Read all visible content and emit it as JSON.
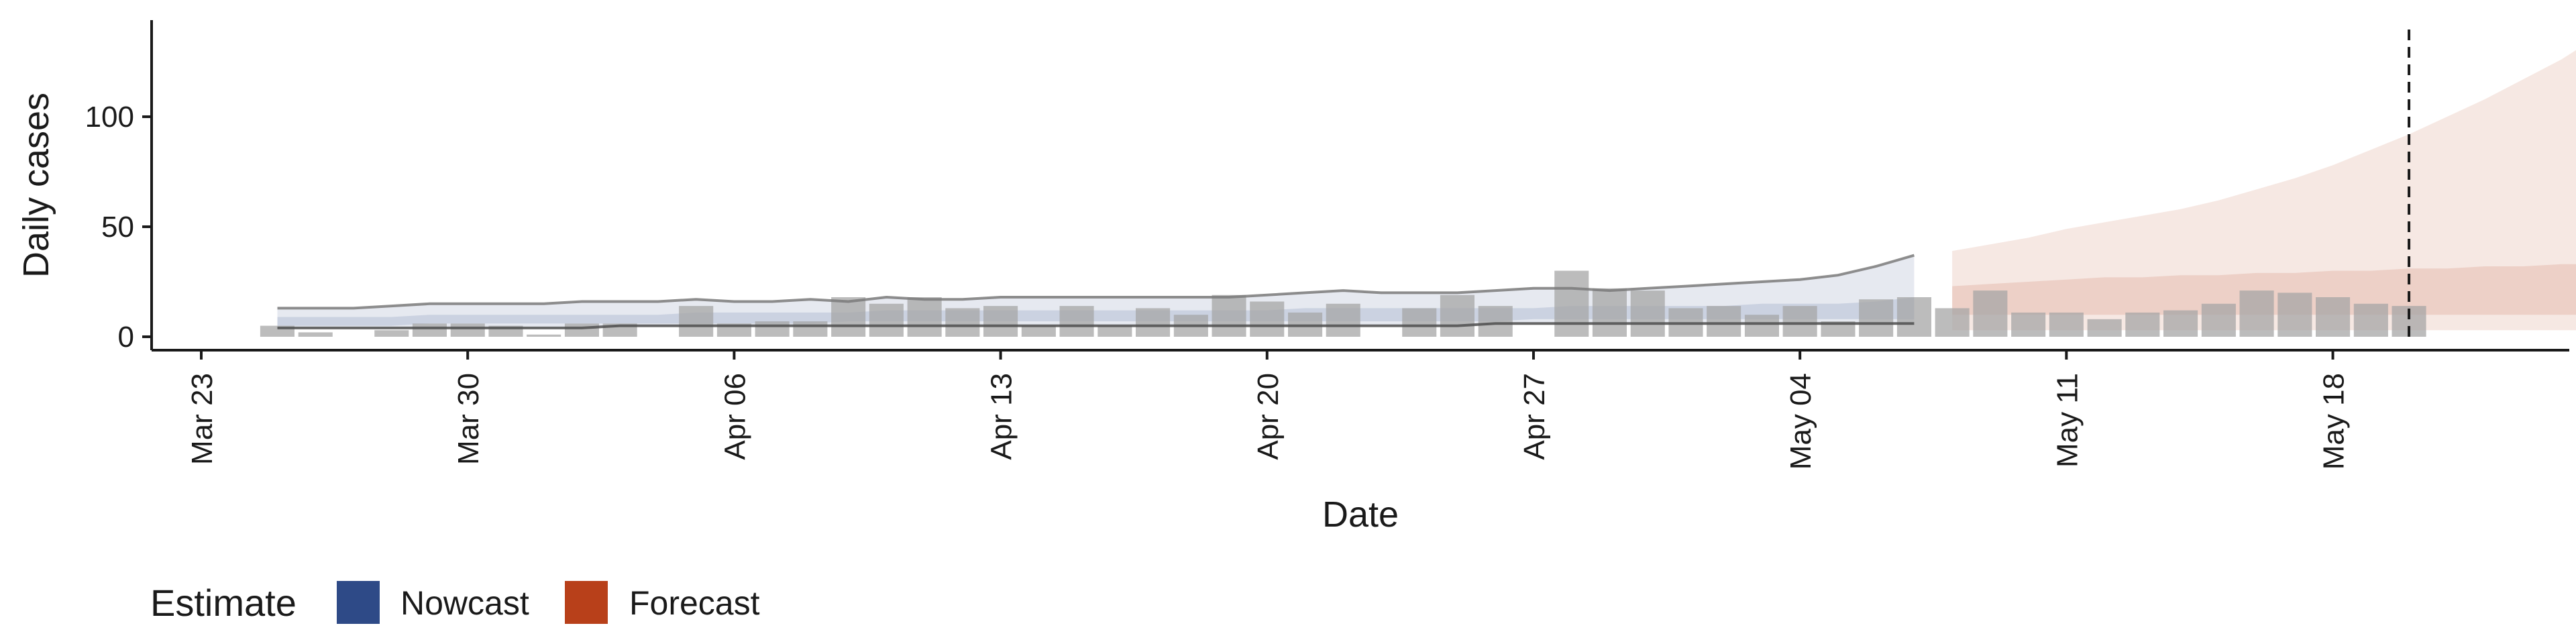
{
  "chart_data": {
    "type": "bar",
    "xlabel": "Date",
    "ylabel": "Daily cases",
    "x_start": "2020-03-23",
    "x_end": "2020-05-24",
    "ylim": [
      -6,
      140
    ],
    "x_ticks": [
      {
        "label": "Mar 23",
        "date": "2020-03-23"
      },
      {
        "label": "Mar 30",
        "date": "2020-03-30"
      },
      {
        "label": "Apr 06",
        "date": "2020-04-06"
      },
      {
        "label": "Apr 13",
        "date": "2020-04-13"
      },
      {
        "label": "Apr 20",
        "date": "2020-04-20"
      },
      {
        "label": "Apr 27",
        "date": "2020-04-27"
      },
      {
        "label": "May 04",
        "date": "2020-05-04"
      },
      {
        "label": "May 11",
        "date": "2020-05-11"
      },
      {
        "label": "May 18",
        "date": "2020-05-18"
      }
    ],
    "y_ticks": [
      0,
      50,
      100
    ],
    "bars": {
      "start_date": "2020-03-25",
      "color": "#a6a6a6",
      "values": [
        5,
        2,
        0,
        3,
        6,
        6,
        5,
        1,
        6,
        6,
        0,
        14,
        6,
        7,
        7,
        18,
        15,
        18,
        13,
        14,
        5,
        14,
        5,
        13,
        10,
        19,
        16,
        11,
        15,
        0,
        13,
        19,
        14,
        0,
        30,
        22,
        21,
        13,
        14,
        10,
        14,
        7,
        17,
        18,
        13,
        21,
        11,
        11,
        8,
        11,
        12,
        15,
        21,
        20,
        18,
        15,
        14
      ]
    },
    "series": [
      {
        "name": "Nowcast",
        "color": "#2e4a87",
        "start_date": "2020-03-25",
        "upper90": [
          13,
          13,
          13,
          14,
          15,
          15,
          15,
          15,
          16,
          16,
          16,
          17,
          16,
          16,
          17,
          16,
          18,
          17,
          17,
          18,
          18,
          18,
          18,
          18,
          18,
          18,
          19,
          20,
          21,
          20,
          20,
          20,
          21,
          22,
          22,
          21,
          22,
          23,
          24,
          25,
          26,
          28,
          32,
          37
        ],
        "upper50": [
          9,
          9,
          9,
          9,
          10,
          10,
          10,
          10,
          10,
          10,
          10,
          11,
          11,
          11,
          11,
          11,
          12,
          12,
          12,
          12,
          12,
          12,
          12,
          12,
          12,
          12,
          12,
          13,
          13,
          13,
          13,
          13,
          13,
          13,
          14,
          14,
          14,
          14,
          14,
          15,
          15,
          15,
          16,
          18
        ],
        "lower50": [
          5,
          5,
          5,
          5,
          6,
          6,
          6,
          6,
          6,
          6,
          6,
          6,
          6,
          6,
          6,
          7,
          7,
          7,
          7,
          7,
          7,
          7,
          7,
          7,
          7,
          7,
          7,
          7,
          7,
          7,
          7,
          7,
          7,
          8,
          8,
          8,
          8,
          8,
          8,
          8,
          8,
          8,
          8,
          8
        ],
        "lower90": [
          4,
          4,
          4,
          4,
          4,
          4,
          4,
          4,
          4,
          5,
          5,
          5,
          5,
          5,
          5,
          5,
          5,
          5,
          5,
          5,
          5,
          5,
          5,
          5,
          5,
          5,
          5,
          5,
          5,
          5,
          5,
          5,
          6,
          6,
          6,
          6,
          6,
          6,
          6,
          6,
          6,
          6,
          6,
          6
        ]
      },
      {
        "name": "Forecast",
        "color": "#b8401a",
        "start_date": "2020-05-08",
        "upper90": [
          39,
          42,
          45,
          49,
          52,
          55,
          58,
          62,
          67,
          72,
          78,
          85,
          92,
          100,
          108,
          117,
          126,
          137
        ],
        "upper50": [
          23,
          24,
          25,
          26,
          27,
          27,
          28,
          28,
          29,
          29,
          30,
          30,
          31,
          31,
          32,
          32,
          33,
          33
        ],
        "lower50": [
          10,
          10,
          10,
          10,
          10,
          10,
          10,
          10,
          10,
          10,
          10,
          10,
          10,
          10,
          10,
          10,
          10,
          10
        ],
        "lower90": [
          3,
          3,
          3,
          3,
          3,
          3,
          3,
          3,
          3,
          3,
          3,
          3,
          3,
          3,
          3,
          3,
          3,
          3
        ]
      }
    ],
    "vline_date": "2020-05-20",
    "grid": false,
    "legend": {
      "position": "bottom-left",
      "title": "Estimate",
      "entries": [
        {
          "label": "Nowcast",
          "color": "#2e4a87"
        },
        {
          "label": "Forecast",
          "color": "#b8401a"
        }
      ]
    }
  }
}
